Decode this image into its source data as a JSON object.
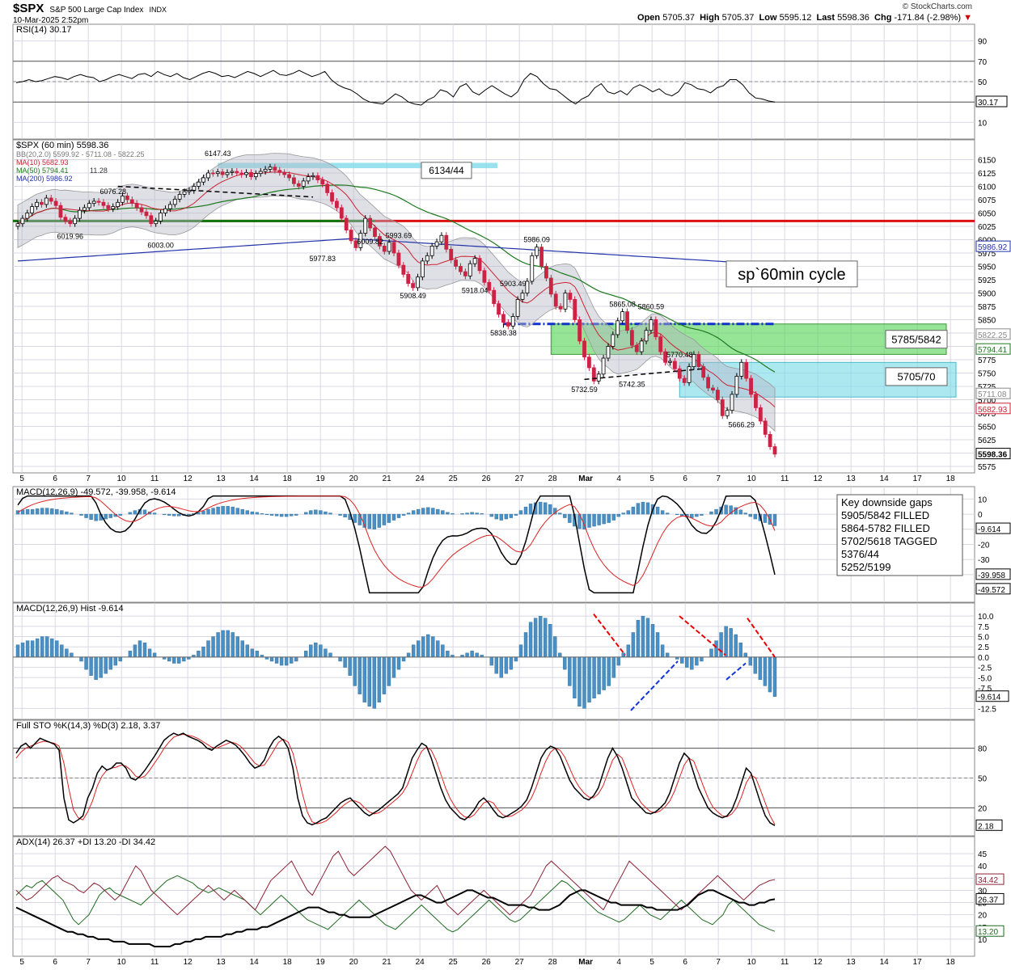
{
  "header": {
    "symbol": "$SPX",
    "description": "S&P 500 Large Cap Index",
    "exchange": "INDX",
    "datetime": "10-Mar-2025 2:52pm",
    "watermark": "© StockCharts.com",
    "open_label": "Open",
    "open": "5705.37",
    "high_label": "High",
    "high": "5705.37",
    "low_label": "Low",
    "low": "5595.12",
    "last_label": "Last",
    "last": "5598.36",
    "chg_label": "Chg",
    "chg": "-171.84 (-2.98%)",
    "chg_arrow": "▼"
  },
  "colors": {
    "panel_bg": "#ffffff",
    "grid": "#d8d8e4",
    "candle_up": "#000000",
    "candle_down": "#cc2244",
    "ma10": "#cc2233",
    "ma50": "#1f7a1f",
    "ma200": "#2233aa",
    "hist": "#4a90c4",
    "red_line": "#dd1111",
    "green_zone": "#5ed65e",
    "cyan_zone": "#7fdbe8"
  },
  "x_labels": [
    "5",
    "6",
    "7",
    "10",
    "11",
    "12",
    "13",
    "14",
    "18",
    "19",
    "20",
    "21",
    "24",
    "25",
    "26",
    "27",
    "28",
    "Mar",
    "4",
    "5",
    "6",
    "7",
    "10",
    "11",
    "12",
    "13",
    "14",
    "17",
    "18"
  ],
  "rsi": {
    "title": "RSI(14) 30.17",
    "last": "30.17",
    "ticks": [
      "90",
      "70",
      "50",
      "30",
      "10"
    ],
    "values": [
      49,
      50,
      52,
      50,
      51,
      53,
      55,
      54,
      52,
      55,
      57,
      55,
      54,
      50,
      52,
      55,
      57,
      55,
      53,
      57,
      58,
      55,
      60,
      57,
      55,
      58,
      54,
      52,
      55,
      58,
      60,
      58,
      55,
      56,
      54,
      57,
      60,
      58,
      55,
      58,
      61,
      57,
      56,
      58,
      61,
      58,
      55,
      57,
      60,
      52,
      47,
      44,
      42,
      38,
      33,
      30,
      29,
      28,
      33,
      38,
      35,
      30,
      28,
      27,
      32,
      35,
      42,
      40,
      35,
      45,
      48,
      40,
      37,
      42,
      46,
      42,
      38,
      35,
      40,
      52,
      58,
      55,
      48,
      43,
      42,
      37,
      32,
      28,
      33,
      36,
      44,
      48,
      40,
      38,
      41,
      37,
      44,
      47,
      44,
      40,
      43,
      38,
      36,
      40,
      49,
      47,
      43,
      42,
      39,
      44,
      46,
      52,
      52,
      47,
      39,
      34,
      33,
      31,
      30
    ]
  },
  "price": {
    "title": "$SPX (60 min) 5598.36",
    "legend": {
      "bb": "BB(20,2.0) 5599.92 - 5711.08 - 5822.25",
      "ma10": "MA(10) 5682.93",
      "ma50": "MA(50) 5794.41",
      "ma200": "MA(200) 5986.92",
      "mid": "11.28"
    },
    "ticks": [
      "6150",
      "6125",
      "6100",
      "6075",
      "6050",
      "6025",
      "6000",
      "5975",
      "5950",
      "5925",
      "5900",
      "5875",
      "5850",
      "5825",
      "5800",
      "5775",
      "5750",
      "5725",
      "5700",
      "5675",
      "5650",
      "5625",
      "5600",
      "5575"
    ],
    "ylim": [
      5575,
      6175
    ],
    "closes": [
      6030,
      6040,
      6050,
      6062,
      6070,
      6066,
      6078,
      6072,
      6064,
      6042,
      6035,
      6030,
      6040,
      6055,
      6060,
      6068,
      6072,
      6070,
      6064,
      6058,
      6062,
      6070,
      6082,
      6075,
      6068,
      6060,
      6052,
      6045,
      6030,
      6035,
      6050,
      6058,
      6066,
      6076,
      6085,
      6090,
      6092,
      6100,
      6108,
      6116,
      6125,
      6124,
      6127,
      6122,
      6126,
      6128,
      6125,
      6122,
      6126,
      6118,
      6124,
      6128,
      6132,
      6136,
      6130,
      6126,
      6122,
      6116,
      6105,
      6100,
      6110,
      6118,
      6120,
      6112,
      6104,
      6088,
      6072,
      6060,
      6040,
      6018,
      5998,
      5985,
      6012,
      6040,
      6022,
      6006,
      5988,
      5978,
      5995,
      5975,
      5952,
      5935,
      5918,
      5910,
      5930,
      5960,
      5970,
      5988,
      5996,
      6008,
      5982,
      5962,
      5950,
      5940,
      5932,
      5955,
      5965,
      5942,
      5920,
      5905,
      5880,
      5860,
      5845,
      5838,
      5856,
      5888,
      5900,
      5922,
      5970,
      5986,
      5950,
      5928,
      5898,
      5875,
      5870,
      5900,
      5888,
      5850,
      5810,
      5780,
      5760,
      5735,
      5748,
      5778,
      5800,
      5822,
      5848,
      5865,
      5830,
      5802,
      5790,
      5810,
      5830,
      5850,
      5818,
      5790,
      5770,
      5772,
      5758,
      5740,
      5732,
      5762,
      5785,
      5762,
      5742,
      5722,
      5718,
      5700,
      5670,
      5680,
      5710,
      5744,
      5770,
      5740,
      5710,
      5685,
      5660,
      5635,
      5612,
      5598
    ],
    "key_levels": [
      {
        "label": "6147.43",
        "price": 6147.43,
        "i": 42
      },
      {
        "label": "6076.28",
        "price": 6076.28,
        "i": 20
      },
      {
        "label": "6019.96",
        "price": 6019.96,
        "i": 11
      },
      {
        "label": "6003.00",
        "price": 6003.0,
        "i": 30
      },
      {
        "label": "6009.82",
        "price": 6009.82,
        "i": 74
      },
      {
        "label": "5993.69",
        "price": 5993.69,
        "i": 80
      },
      {
        "label": "5977.83",
        "price": 5977.83,
        "i": 64
      },
      {
        "label": "5986.09",
        "price": 5986.09,
        "i": 109
      },
      {
        "label": "5908.49",
        "price": 5908.49,
        "i": 83
      },
      {
        "label": "5918.04",
        "price": 5918.04,
        "i": 96
      },
      {
        "label": "5903.49",
        "price": 5903.49,
        "i": 104
      },
      {
        "label": "5838.38",
        "price": 5838.38,
        "i": 102
      },
      {
        "label": "5865.08",
        "price": 5865.08,
        "i": 127
      },
      {
        "label": "5860.59",
        "price": 5860.59,
        "i": 133
      },
      {
        "label": "5770.48",
        "price": 5770.48,
        "i": 139
      },
      {
        "label": "5742.35",
        "price": 5742.35,
        "i": 129
      },
      {
        "label": "5732.59",
        "price": 5732.59,
        "i": 119
      },
      {
        "label": "5666.29",
        "price": 5666.29,
        "i": 152
      }
    ],
    "right_labels": [
      {
        "text": "5986.92",
        "price": 5986.92,
        "color": "#2233aa"
      },
      {
        "text": "5822.25",
        "price": 5822.25,
        "color": "#888888"
      },
      {
        "text": "5794.41",
        "price": 5794.41,
        "color": "#1f7a1f"
      },
      {
        "text": "5711.08",
        "price": 5711.08,
        "color": "#888888"
      },
      {
        "text": "5682.93",
        "price": 5682.93,
        "color": "#cc2233"
      },
      {
        "text": "5598.36",
        "price": 5598.36,
        "color": "#000000"
      }
    ],
    "annotations": {
      "box_6134": "6134/44",
      "cycle": "sp`60min cycle",
      "box_5785": "5785/5842",
      "box_5705": "5705/70"
    },
    "red_line_price": 6035,
    "green_zone": [
      5785,
      5842
    ],
    "cyan_zone": [
      5705,
      5770
    ],
    "blue_line_price": 5842
  },
  "macd": {
    "title": "MACD(12,26,9) -49.572, -39.958, -9.614",
    "ticks": [
      "10",
      "0",
      "-10",
      "-20",
      "-30",
      "-40"
    ],
    "ylim": [
      -55,
      15
    ],
    "right_labels": [
      "-9.614",
      "-39.958",
      "-49.572"
    ],
    "note_lines": [
      "Key downside gaps",
      "5905/5842 FILLED",
      "5864-5782 FILLED",
      "5702/5618 TAGGED",
      "5376/44",
      "5252/5199"
    ]
  },
  "hist": {
    "title": "MACD(12,26,9) Hist -9.614",
    "ticks": [
      "10.0",
      "7.5",
      "5.0",
      "2.5",
      "0.0",
      "-2.5",
      "-5.0",
      "-7.5",
      "-12.5"
    ],
    "ylim": [
      -14,
      12
    ],
    "last": "-9.614",
    "values": [
      3,
      3.5,
      4,
      4,
      4.5,
      5,
      5,
      4.5,
      4,
      3,
      2,
      1,
      0,
      -1,
      -3,
      -4.5,
      -5.5,
      -5,
      -4,
      -3,
      -2,
      -1,
      0,
      1.5,
      3,
      4,
      3.5,
      2,
      1,
      0,
      -0.5,
      -1,
      -1.5,
      -1.5,
      -1,
      -0.5,
      0.5,
      1.5,
      2.5,
      4,
      5,
      6,
      6.5,
      6.5,
      6,
      5,
      4,
      3,
      2,
      1.5,
      0.5,
      -0.5,
      -1,
      -1.5,
      -2,
      -2,
      -1.5,
      -1,
      0,
      1.5,
      3,
      3.5,
      3,
      2,
      1,
      0,
      -1,
      -2.5,
      -4.5,
      -7,
      -9,
      -11,
      -12,
      -12.5,
      -11,
      -9,
      -7,
      -5,
      -3,
      -1,
      1,
      3,
      4,
      5,
      5.5,
      5,
      4,
      3,
      1.5,
      0.5,
      0,
      0.5,
      1,
      1.5,
      1,
      0.5,
      0,
      -2,
      -4,
      -5,
      -4,
      -3,
      -1,
      3,
      6,
      8.5,
      9.5,
      10,
      9.5,
      8,
      5,
      1,
      -3,
      -7,
      -10,
      -12,
      -12.5,
      -11,
      -10,
      -9,
      -8,
      -7,
      -5,
      -2,
      1,
      3,
      6,
      9,
      10,
      9.5,
      8,
      6,
      3,
      1,
      0,
      -0.5,
      -1.5,
      -2.5,
      -3,
      -2,
      -1,
      0,
      2,
      4,
      6,
      7.5,
      7,
      5.5,
      3.5,
      1,
      -2,
      -4,
      -5.5,
      -7,
      -8.5,
      -9.614
    ]
  },
  "sto": {
    "title": "Full STO %K(14,3) %D(3) 2.18, 3.37",
    "ticks": [
      "80",
      "50",
      "20"
    ],
    "last": "2.18",
    "k": [
      75,
      82,
      85,
      80,
      85,
      90,
      88,
      86,
      84,
      78,
      30,
      8,
      5,
      8,
      12,
      30,
      40,
      55,
      62,
      58,
      60,
      65,
      65,
      60,
      50,
      48,
      52,
      58,
      65,
      72,
      80,
      88,
      92,
      95,
      93,
      95,
      92,
      90,
      88,
      85,
      80,
      78,
      82,
      85,
      88,
      86,
      83,
      78,
      72,
      65,
      60,
      62,
      68,
      80,
      88,
      92,
      88,
      80,
      60,
      30,
      12,
      5,
      3,
      5,
      8,
      10,
      15,
      20,
      25,
      28,
      30,
      25,
      20,
      15,
      12,
      15,
      18,
      22,
      26,
      30,
      34,
      40,
      55,
      70,
      78,
      85,
      82,
      70,
      55,
      40,
      28,
      20,
      15,
      10,
      8,
      12,
      18,
      26,
      30,
      25,
      18,
      12,
      10,
      12,
      15,
      18,
      22,
      28,
      40,
      55,
      70,
      78,
      82,
      80,
      72,
      60,
      48,
      40,
      35,
      30,
      28,
      32,
      40,
      55,
      70,
      80,
      72,
      60,
      45,
      30,
      25,
      20,
      15,
      14,
      16,
      20,
      25,
      35,
      50,
      65,
      75,
      70,
      55,
      40,
      30,
      20,
      15,
      12,
      10,
      12,
      18,
      30,
      45,
      60,
      55,
      40,
      25,
      12,
      5,
      2.18
    ],
    "d": [
      70,
      76,
      80,
      82,
      84,
      86,
      87,
      86,
      85,
      82,
      65,
      40,
      18,
      10,
      8,
      16,
      27,
      42,
      52,
      58,
      60,
      61,
      63,
      62,
      58,
      52,
      50,
      52,
      58,
      65,
      72,
      80,
      86,
      91,
      93,
      94,
      93,
      92,
      90,
      87,
      84,
      81,
      80,
      82,
      84,
      86,
      85,
      82,
      77,
      71,
      65,
      62,
      63,
      70,
      78,
      86,
      89,
      86,
      75,
      55,
      34,
      16,
      6,
      4,
      5,
      7,
      11,
      15,
      20,
      24,
      27,
      27,
      25,
      20,
      16,
      14,
      15,
      18,
      22,
      26,
      30,
      35,
      43,
      55,
      67,
      77,
      81,
      78,
      68,
      54,
      40,
      29,
      21,
      15,
      11,
      10,
      13,
      19,
      25,
      27,
      25,
      18,
      13,
      11,
      12,
      15,
      18,
      23,
      30,
      41,
      55,
      67,
      76,
      80,
      78,
      71,
      60,
      49,
      41,
      35,
      31,
      30,
      34,
      42,
      55,
      68,
      74,
      70,
      58,
      45,
      33,
      25,
      20,
      16,
      15,
      17,
      21,
      27,
      37,
      50,
      63,
      70,
      67,
      55,
      42,
      30,
      21,
      16,
      12,
      11,
      14,
      20,
      31,
      45,
      53,
      50,
      38,
      25,
      12,
      3.37
    ]
  },
  "adx": {
    "title": "ADX(14) 26.37 +DI 13.20 -DI 34.42",
    "ticks": [
      "45",
      "40",
      "35",
      "30",
      "25",
      "20",
      "15",
      "10"
    ],
    "ylim": [
      5,
      50
    ],
    "right_labels": [
      "34.42",
      "26.37",
      "13.20"
    ],
    "adx": [
      23,
      22,
      21,
      20,
      19,
      18,
      17,
      16,
      15,
      14,
      13,
      13,
      12,
      12,
      11,
      11,
      10,
      10,
      10,
      9,
      9,
      9,
      8,
      8,
      8,
      8,
      8,
      7,
      7,
      7,
      7,
      8,
      8,
      9,
      9,
      10,
      10,
      11,
      11,
      11,
      11,
      12,
      12,
      13,
      13,
      14,
      14,
      14,
      15,
      15,
      16,
      17,
      18,
      19,
      20,
      21,
      22,
      23,
      23,
      23,
      22,
      21,
      21,
      20,
      20,
      19,
      19,
      19,
      19,
      19,
      20,
      21,
      22,
      23,
      24,
      25,
      26,
      27,
      28,
      28,
      27,
      26,
      25,
      25,
      26,
      27,
      28,
      29,
      30,
      30,
      29,
      28,
      27,
      27,
      26,
      25,
      24,
      24,
      24,
      24,
      23,
      23,
      22,
      22,
      22,
      23,
      24,
      26,
      28,
      29,
      30,
      30,
      29,
      28,
      27,
      26,
      25,
      25,
      24,
      24,
      24,
      24,
      24,
      23,
      23,
      22,
      22,
      22,
      22,
      22,
      23,
      24,
      26,
      28,
      29,
      30,
      30,
      29,
      28,
      27,
      26,
      25,
      25,
      24,
      24,
      25,
      25,
      26,
      26.37
    ],
    "pdi": [
      28,
      30,
      32,
      31,
      33,
      34,
      32,
      30,
      28,
      26,
      22,
      18,
      16,
      18,
      20,
      24,
      28,
      30,
      31,
      29,
      28,
      27,
      26,
      25,
      24,
      26,
      28,
      30,
      32,
      34,
      35,
      36,
      35,
      34,
      33,
      31,
      30,
      29,
      30,
      31,
      30,
      29,
      28,
      27,
      26,
      24,
      22,
      20,
      22,
      24,
      26,
      28,
      26,
      24,
      22,
      20,
      18,
      17,
      16,
      15,
      14,
      16,
      18,
      20,
      22,
      24,
      26,
      24,
      22,
      20,
      18,
      16,
      15,
      14,
      16,
      18,
      20,
      22,
      24,
      22,
      20,
      18,
      16,
      14,
      13,
      14,
      16,
      18,
      20,
      22,
      24,
      26,
      24,
      22,
      20,
      18,
      17,
      18,
      20,
      22,
      24,
      26,
      28,
      30,
      32,
      34,
      33,
      31,
      29,
      27,
      25,
      23,
      21,
      20,
      19,
      18,
      17,
      18,
      20,
      22,
      24,
      22,
      20,
      19,
      18,
      20,
      22,
      24,
      26,
      24,
      22,
      20,
      18,
      17,
      16,
      18,
      20,
      24,
      26,
      24,
      22,
      20,
      18,
      16,
      15,
      14,
      13.2
    ],
    "mdi": [
      30,
      28,
      26,
      27,
      29,
      31,
      33,
      35,
      36,
      34,
      33,
      32,
      30,
      29,
      31,
      33,
      32,
      30,
      28,
      26,
      28,
      32,
      36,
      40,
      38,
      34,
      30,
      28,
      26,
      24,
      22,
      20,
      22,
      24,
      26,
      28,
      30,
      32,
      30,
      28,
      26,
      28,
      30,
      28,
      26,
      24,
      22,
      26,
      30,
      34,
      36,
      38,
      40,
      42,
      38,
      34,
      30,
      28,
      32,
      36,
      40,
      44,
      46,
      42,
      38,
      36,
      38,
      40,
      42,
      44,
      46,
      48,
      46,
      42,
      38,
      34,
      30,
      28,
      26,
      28,
      30,
      32,
      28,
      24,
      22,
      20,
      22,
      24,
      26,
      28,
      30,
      28,
      26,
      24,
      22,
      20,
      22,
      24,
      26,
      28,
      32,
      36,
      40,
      42,
      40,
      38,
      36,
      34,
      32,
      30,
      28,
      26,
      24,
      22,
      26,
      30,
      34,
      38,
      42,
      40,
      38,
      36,
      34,
      32,
      30,
      28,
      26,
      24,
      22,
      24,
      26,
      28,
      30,
      32,
      34,
      36,
      34,
      32,
      30,
      28,
      26,
      28,
      30,
      32,
      33,
      34,
      34.42
    ]
  }
}
